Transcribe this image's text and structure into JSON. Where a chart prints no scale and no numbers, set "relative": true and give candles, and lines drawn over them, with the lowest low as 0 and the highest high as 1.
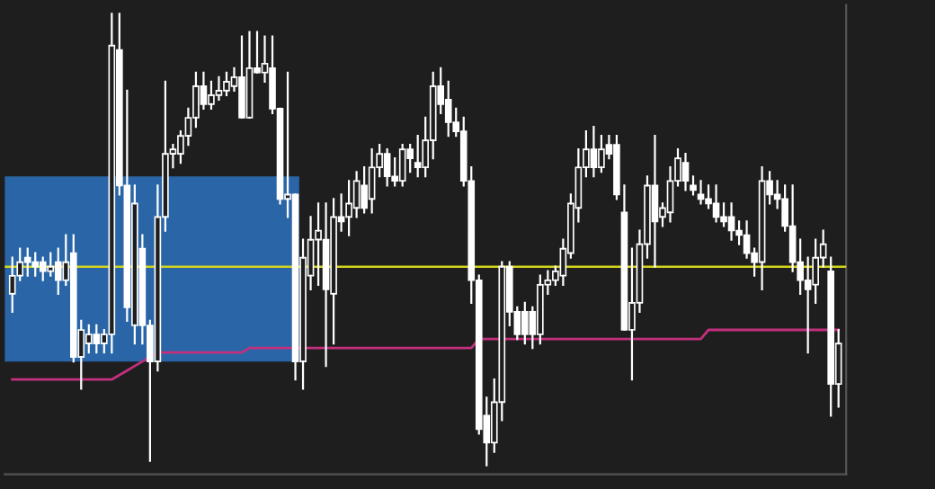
{
  "chart_data": {
    "type": "candlestick",
    "relative": true,
    "tick_labels": false,
    "categories": [
      null,
      null,
      null,
      null,
      null,
      null,
      null,
      null,
      null,
      null,
      null,
      null,
      null,
      null,
      null,
      null,
      null,
      null,
      null,
      null,
      null,
      null,
      null,
      null,
      null,
      null,
      null,
      null,
      null,
      null,
      null,
      null,
      null,
      null,
      null,
      null,
      null,
      null,
      null,
      null,
      null,
      null,
      null,
      null,
      null,
      null,
      null,
      null,
      null,
      null,
      null,
      null,
      null,
      null,
      null,
      null,
      null,
      null,
      null,
      null,
      null,
      null,
      null,
      null,
      null,
      null,
      null,
      null,
      null,
      null,
      null,
      null,
      null,
      null,
      null,
      null,
      null,
      null,
      null,
      null,
      null,
      null,
      null,
      null,
      null,
      null,
      null,
      null,
      null,
      null,
      null,
      null,
      null,
      null,
      null,
      null,
      null,
      null,
      null,
      null,
      null,
      null,
      null,
      null,
      null,
      null,
      null,
      null,
      null
    ],
    "color": "#ffffff",
    "ohlc": [
      [
        0.38,
        0.46,
        0.34,
        0.42
      ],
      [
        0.42,
        0.48,
        0.41,
        0.45
      ],
      [
        0.46,
        0.48,
        0.42,
        0.45
      ],
      [
        0.45,
        0.47,
        0.42,
        0.44
      ],
      [
        0.45,
        0.46,
        0.41,
        0.43
      ],
      [
        0.43,
        0.47,
        0.42,
        0.44
      ],
      [
        0.45,
        0.48,
        0.38,
        0.41
      ],
      [
        0.41,
        0.51,
        0.4,
        0.45
      ],
      [
        0.47,
        0.51,
        0.23,
        0.24
      ],
      [
        0.24,
        0.32,
        0.17,
        0.3
      ],
      [
        0.27,
        0.31,
        0.25,
        0.29
      ],
      [
        0.29,
        0.31,
        0.25,
        0.27
      ],
      [
        0.27,
        0.3,
        0.25,
        0.29
      ],
      [
        0.29,
        1.0,
        0.25,
        0.93
      ],
      [
        0.92,
        1.0,
        0.6,
        0.62
      ],
      [
        0.62,
        0.83,
        0.32,
        0.35
      ],
      [
        0.31,
        0.62,
        0.27,
        0.58
      ],
      [
        0.48,
        0.51,
        0.27,
        0.31
      ],
      [
        0.31,
        0.32,
        0.01,
        0.23
      ],
      [
        0.23,
        0.62,
        0.21,
        0.55
      ],
      [
        0.55,
        0.85,
        0.52,
        0.69
      ],
      [
        0.69,
        0.71,
        0.66,
        0.7
      ],
      [
        0.69,
        0.74,
        0.67,
        0.73
      ],
      [
        0.73,
        0.79,
        0.71,
        0.77
      ],
      [
        0.77,
        0.87,
        0.75,
        0.84
      ],
      [
        0.84,
        0.87,
        0.79,
        0.8
      ],
      [
        0.8,
        0.85,
        0.79,
        0.82
      ],
      [
        0.82,
        0.86,
        0.81,
        0.83
      ],
      [
        0.83,
        0.87,
        0.82,
        0.85
      ],
      [
        0.84,
        0.88,
        0.83,
        0.86
      ],
      [
        0.86,
        0.95,
        0.77,
        0.77
      ],
      [
        0.77,
        0.96,
        0.77,
        0.88
      ],
      [
        0.88,
        0.96,
        0.87,
        0.87
      ],
      [
        0.87,
        0.95,
        0.85,
        0.89
      ],
      [
        0.88,
        0.95,
        0.78,
        0.79
      ],
      [
        0.79,
        0.79,
        0.58,
        0.59
      ],
      [
        0.59,
        0.87,
        0.55,
        0.6
      ],
      [
        0.6,
        0.6,
        0.19,
        0.23
      ],
      [
        0.23,
        0.5,
        0.17,
        0.46
      ],
      [
        0.42,
        0.55,
        0.39,
        0.5
      ],
      [
        0.5,
        0.58,
        0.4,
        0.52
      ],
      [
        0.5,
        0.58,
        0.22,
        0.39
      ],
      [
        0.38,
        0.59,
        0.27,
        0.55
      ],
      [
        0.55,
        0.6,
        0.52,
        0.54
      ],
      [
        0.55,
        0.63,
        0.51,
        0.58
      ],
      [
        0.57,
        0.65,
        0.55,
        0.63
      ],
      [
        0.62,
        0.66,
        0.56,
        0.57
      ],
      [
        0.59,
        0.7,
        0.56,
        0.66
      ],
      [
        0.66,
        0.71,
        0.64,
        0.69
      ],
      [
        0.69,
        0.7,
        0.62,
        0.64
      ],
      [
        0.64,
        0.68,
        0.62,
        0.63
      ],
      [
        0.63,
        0.71,
        0.62,
        0.7
      ],
      [
        0.7,
        0.71,
        0.65,
        0.68
      ],
      [
        0.67,
        0.73,
        0.64,
        0.66
      ],
      [
        0.66,
        0.77,
        0.64,
        0.72
      ],
      [
        0.72,
        0.87,
        0.68,
        0.84
      ],
      [
        0.84,
        0.88,
        0.78,
        0.8
      ],
      [
        0.81,
        0.85,
        0.73,
        0.76
      ],
      [
        0.76,
        0.79,
        0.73,
        0.74
      ],
      [
        0.74,
        0.77,
        0.62,
        0.63
      ],
      [
        0.63,
        0.66,
        0.36,
        0.41
      ],
      [
        0.41,
        0.42,
        0.07,
        0.08
      ],
      [
        0.11,
        0.15,
        0.0,
        0.05
      ],
      [
        0.05,
        0.19,
        0.03,
        0.14
      ],
      [
        0.14,
        0.45,
        0.1,
        0.44
      ],
      [
        0.44,
        0.45,
        0.31,
        0.34
      ],
      [
        0.34,
        0.35,
        0.28,
        0.29
      ],
      [
        0.34,
        0.36,
        0.27,
        0.29
      ],
      [
        0.34,
        0.35,
        0.26,
        0.29
      ],
      [
        0.29,
        0.42,
        0.27,
        0.4
      ],
      [
        0.4,
        0.43,
        0.38,
        0.41
      ],
      [
        0.41,
        0.44,
        0.4,
        0.43
      ],
      [
        0.42,
        0.5,
        0.4,
        0.48
      ],
      [
        0.47,
        0.6,
        0.46,
        0.58
      ],
      [
        0.57,
        0.7,
        0.54,
        0.66
      ],
      [
        0.66,
        0.74,
        0.64,
        0.7
      ],
      [
        0.7,
        0.75,
        0.64,
        0.66
      ],
      [
        0.66,
        0.73,
        0.65,
        0.7
      ],
      [
        0.71,
        0.73,
        0.68,
        0.69
      ],
      [
        0.71,
        0.73,
        0.59,
        0.6
      ],
      [
        0.56,
        0.62,
        0.3,
        0.3
      ],
      [
        0.3,
        0.48,
        0.19,
        0.36
      ],
      [
        0.36,
        0.52,
        0.34,
        0.49
      ],
      [
        0.49,
        0.64,
        0.46,
        0.62
      ],
      [
        0.62,
        0.73,
        0.44,
        0.54
      ],
      [
        0.55,
        0.58,
        0.53,
        0.57
      ],
      [
        0.56,
        0.66,
        0.54,
        0.63
      ],
      [
        0.63,
        0.7,
        0.62,
        0.68
      ],
      [
        0.67,
        0.69,
        0.61,
        0.63
      ],
      [
        0.62,
        0.64,
        0.6,
        0.61
      ],
      [
        0.6,
        0.63,
        0.58,
        0.59
      ],
      [
        0.59,
        0.62,
        0.57,
        0.58
      ],
      [
        0.58,
        0.62,
        0.54,
        0.55
      ],
      [
        0.55,
        0.58,
        0.53,
        0.54
      ],
      [
        0.55,
        0.58,
        0.5,
        0.52
      ],
      [
        0.52,
        0.54,
        0.49,
        0.51
      ],
      [
        0.51,
        0.54,
        0.46,
        0.47
      ],
      [
        0.47,
        0.48,
        0.42,
        0.45
      ],
      [
        0.45,
        0.66,
        0.39,
        0.63
      ],
      [
        0.63,
        0.65,
        0.58,
        0.6
      ],
      [
        0.6,
        0.63,
        0.57,
        0.59
      ],
      [
        0.59,
        0.62,
        0.52,
        0.53
      ],
      [
        0.53,
        0.62,
        0.43,
        0.45
      ],
      [
        0.45,
        0.5,
        0.38,
        0.41
      ],
      [
        0.41,
        0.46,
        0.25,
        0.39
      ],
      [
        0.4,
        0.5,
        0.36,
        0.46
      ],
      [
        0.46,
        0.52,
        0.44,
        0.49
      ],
      [
        0.43,
        0.46,
        0.11,
        0.18
      ],
      [
        0.18,
        0.3,
        0.13,
        0.27
      ]
    ],
    "series": [
      {
        "type": "line",
        "color": "#c2307e",
        "values": [
          0.19,
          0.19,
          0.19,
          0.19,
          0.19,
          0.19,
          0.19,
          0.19,
          0.19,
          0.19,
          0.19,
          0.19,
          0.19,
          0.19,
          0.2,
          0.21,
          0.22,
          0.23,
          0.24,
          0.25,
          0.25,
          0.25,
          0.25,
          0.25,
          0.25,
          0.25,
          0.25,
          0.25,
          0.25,
          0.25,
          0.25,
          0.26,
          0.26,
          0.26,
          0.26,
          0.26,
          0.26,
          0.26,
          0.26,
          0.26,
          0.26,
          0.26,
          0.26,
          0.26,
          0.26,
          0.26,
          0.26,
          0.26,
          0.26,
          0.26,
          0.26,
          0.26,
          0.26,
          0.26,
          0.26,
          0.26,
          0.26,
          0.26,
          0.26,
          0.26,
          0.26,
          0.28,
          0.28,
          0.28,
          0.28,
          0.28,
          0.28,
          0.28,
          0.28,
          0.28,
          0.28,
          0.28,
          0.28,
          0.28,
          0.28,
          0.28,
          0.28,
          0.28,
          0.28,
          0.28,
          0.28,
          0.28,
          0.28,
          0.28,
          0.28,
          0.28,
          0.28,
          0.28,
          0.28,
          0.28,
          0.28,
          0.3,
          0.3,
          0.3,
          0.3,
          0.3,
          0.3,
          0.3,
          0.3,
          0.3,
          0.3,
          0.3,
          0.3,
          0.3,
          0.3,
          0.3,
          0.3,
          0.3,
          0.3
        ]
      }
    ],
    "ref_lines": [
      {
        "axis": "y",
        "value": 0.44,
        "color": "#d4d41e"
      }
    ],
    "bands": [
      {
        "axis": "y",
        "from": 0.23,
        "to": 0.64,
        "color": "#2f7fd6"
      }
    ]
  }
}
